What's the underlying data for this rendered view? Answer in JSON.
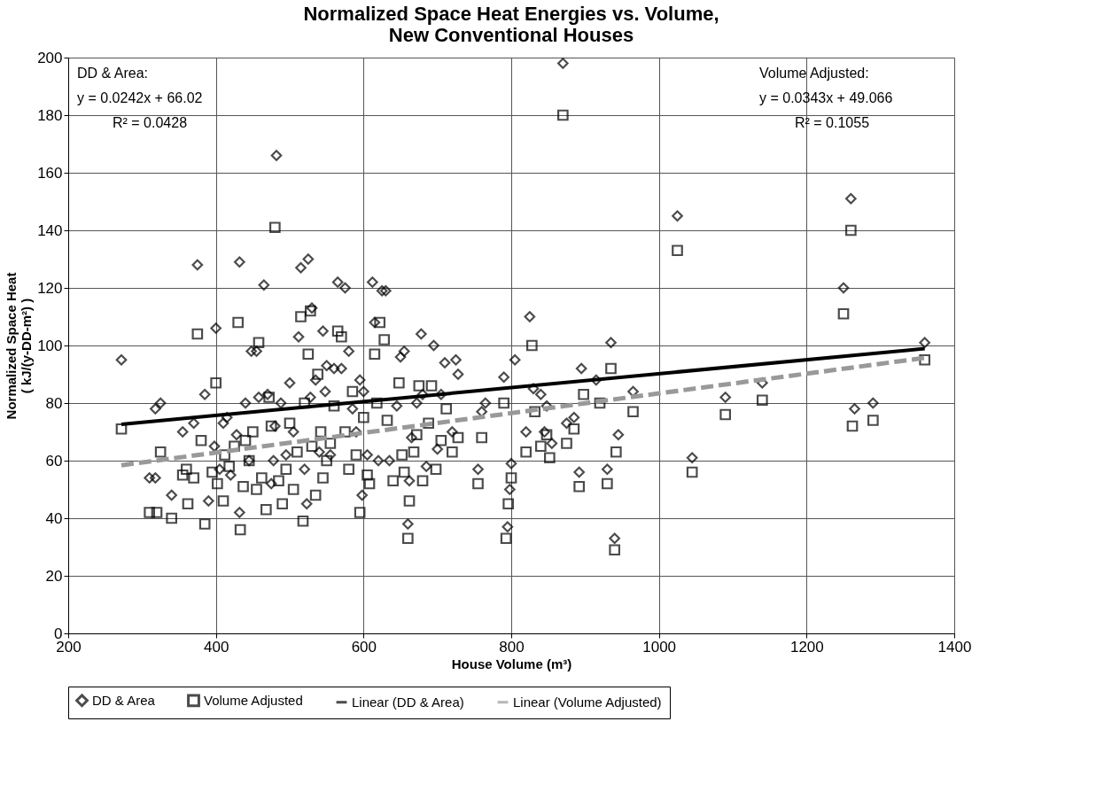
{
  "chart_data": {
    "type": "scatter",
    "title": "Normalized Space Heat Energies vs. Volume,\nNew Conventional Houses",
    "xlabel": "House Volume (m³)",
    "ylabel": "Normalized Space Heat\n( kJ/(y-DD-m²) )",
    "xlim": [
      200,
      1400
    ],
    "xticks": [
      200,
      400,
      600,
      800,
      1000,
      1200,
      1400
    ],
    "ylim": [
      0,
      200
    ],
    "yticks": [
      0,
      20,
      40,
      60,
      80,
      100,
      120,
      140,
      160,
      180,
      200
    ],
    "grid": true,
    "legend": "bottom",
    "annotations": [
      "DD & Area:",
      "y = 0.0242x + 66.02",
      "R² = 0.0428",
      "Volume Adjusted:",
      "y = 0.0343x + 49.066",
      "R² = 0.1055"
    ],
    "series": [
      {
        "name": "DD & Area",
        "marker": "diamond",
        "color": "#000000",
        "x": [
          272,
          310,
          318,
          318,
          325,
          340,
          355,
          370,
          375,
          385,
          390,
          398,
          400,
          405,
          410,
          415,
          420,
          428,
          432,
          432,
          440,
          445,
          448,
          455,
          458,
          465,
          470,
          475,
          478,
          480,
          482,
          488,
          495,
          500,
          505,
          512,
          515,
          520,
          523,
          525,
          528,
          530,
          535,
          540,
          545,
          548,
          550,
          555,
          560,
          565,
          570,
          575,
          580,
          585,
          590,
          595,
          598,
          600,
          605,
          612,
          615,
          620,
          625,
          630,
          635,
          645,
          650,
          655,
          660,
          662,
          665,
          672,
          678,
          680,
          685,
          695,
          700,
          705,
          710,
          720,
          725,
          728,
          755,
          760,
          765,
          790,
          795,
          798,
          800,
          805,
          820,
          825,
          830,
          840,
          845,
          848,
          855,
          870,
          875,
          885,
          892,
          895,
          915,
          930,
          935,
          940,
          945,
          965,
          1025,
          1045,
          1090,
          1140,
          1250,
          1260,
          1265,
          1290,
          1360
        ],
        "values": [
          95,
          54,
          54,
          78,
          80,
          48,
          70,
          73,
          128,
          83,
          46,
          65,
          106,
          57,
          73,
          75,
          55,
          69,
          129,
          42,
          80,
          60,
          98,
          98,
          82,
          121,
          83,
          52,
          60,
          72,
          166,
          80,
          62,
          87,
          70,
          103,
          127,
          57,
          45,
          130,
          82,
          113,
          88,
          63,
          105,
          84,
          93,
          62,
          92,
          122,
          92,
          120,
          98,
          78,
          70,
          88,
          48,
          84,
          62,
          122,
          108,
          60,
          119,
          119,
          60,
          79,
          96,
          98,
          38,
          53,
          68,
          80,
          104,
          83,
          58,
          100,
          64,
          83,
          94,
          70,
          95,
          90,
          57,
          77,
          80,
          89,
          37,
          50,
          59,
          95,
          70,
          110,
          85,
          83,
          70,
          79,
          66,
          198,
          73,
          75,
          56,
          92,
          88,
          57,
          101,
          33,
          69,
          84,
          145,
          61,
          82,
          87,
          120,
          151,
          78,
          80,
          101
        ]
      },
      {
        "name": "Volume Adjusted",
        "marker": "square",
        "color": "#000000",
        "x": [
          272,
          310,
          320,
          325,
          340,
          355,
          360,
          362,
          370,
          375,
          380,
          385,
          395,
          400,
          402,
          410,
          412,
          418,
          425,
          430,
          433,
          437,
          440,
          445,
          450,
          455,
          458,
          462,
          468,
          472,
          475,
          480,
          485,
          490,
          495,
          500,
          505,
          510,
          515,
          518,
          520,
          525,
          528,
          530,
          535,
          538,
          542,
          545,
          550,
          555,
          560,
          565,
          570,
          575,
          580,
          585,
          590,
          595,
          600,
          605,
          608,
          615,
          618,
          622,
          628,
          632,
          640,
          648,
          652,
          655,
          660,
          662,
          668,
          672,
          675,
          680,
          688,
          692,
          698,
          705,
          712,
          720,
          728,
          755,
          760,
          790,
          793,
          796,
          800,
          820,
          828,
          832,
          840,
          848,
          852,
          870,
          875,
          885,
          892,
          898,
          920,
          930,
          935,
          940,
          942,
          965,
          1025,
          1045,
          1090,
          1140,
          1250,
          1260,
          1262,
          1290,
          1360
        ],
        "values": [
          71,
          42,
          42,
          63,
          40,
          55,
          57,
          45,
          54,
          104,
          67,
          38,
          56,
          87,
          52,
          46,
          62,
          58,
          65,
          108,
          36,
          51,
          67,
          60,
          70,
          50,
          101,
          54,
          43,
          82,
          72,
          141,
          53,
          45,
          57,
          73,
          50,
          63,
          110,
          39,
          80,
          97,
          112,
          65,
          48,
          90,
          70,
          54,
          60,
          66,
          79,
          105,
          103,
          70,
          57,
          84,
          62,
          42,
          75,
          55,
          52,
          97,
          80,
          108,
          102,
          74,
          53,
          87,
          62,
          56,
          33,
          46,
          63,
          69,
          86,
          53,
          73,
          86,
          57,
          67,
          78,
          63,
          68,
          52,
          68,
          80,
          33,
          45,
          54,
          63,
          100,
          77,
          65,
          69,
          61,
          180,
          66,
          71,
          51,
          83,
          80,
          52,
          92,
          29,
          63,
          77,
          133,
          56,
          76,
          81,
          111,
          140,
          72,
          74,
          95
        ]
      },
      {
        "name": "Linear (DD & Area)",
        "type": "line",
        "line_style": "solid",
        "color": "#000000",
        "x": [
          272,
          1360
        ],
        "values": [
          72.6,
          98.9
        ]
      },
      {
        "name": "Linear (Volume Adjusted)",
        "type": "line",
        "line_style": "dashed",
        "color": "#999999",
        "x": [
          272,
          1360
        ],
        "values": [
          58.4,
          95.7
        ]
      }
    ]
  }
}
